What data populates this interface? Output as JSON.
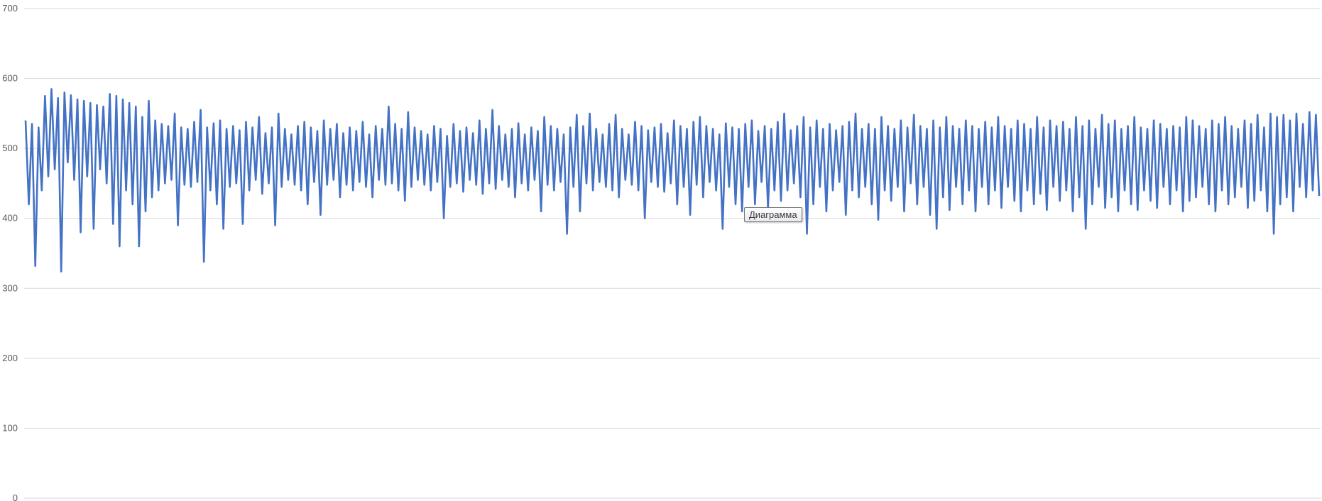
{
  "chart_data": {
    "type": "line",
    "title": "",
    "xlabel": "",
    "ylabel": "",
    "ylim": [
      0,
      700
    ],
    "yticks": [
      "0",
      "100",
      "200",
      "300",
      "400",
      "500",
      "600",
      "700"
    ],
    "grid": true,
    "legend": "none",
    "series_color": "#4472c4",
    "gridline_color": "#d9d9d9",
    "values": [
      540,
      420,
      535,
      332,
      530,
      440,
      575,
      460,
      585,
      470,
      572,
      324,
      580,
      480,
      576,
      455,
      570,
      380,
      568,
      460,
      565,
      385,
      562,
      470,
      560,
      450,
      578,
      392,
      575,
      360,
      570,
      440,
      565,
      420,
      560,
      360,
      545,
      410,
      568,
      430,
      540,
      440,
      535,
      450,
      532,
      455,
      550,
      390,
      530,
      448,
      528,
      445,
      538,
      452,
      555,
      338,
      530,
      440,
      536,
      420,
      540,
      385,
      528,
      445,
      532,
      450,
      526,
      392,
      538,
      440,
      530,
      455,
      545,
      435,
      522,
      450,
      530,
      390,
      550,
      445,
      528,
      455,
      520,
      448,
      532,
      440,
      538,
      420,
      530,
      452,
      525,
      405,
      540,
      448,
      528,
      455,
      535,
      430,
      522,
      448,
      530,
      440,
      525,
      452,
      538,
      445,
      520,
      430,
      532,
      455,
      528,
      448,
      560,
      450,
      535,
      440,
      528,
      425,
      552,
      445,
      530,
      455,
      525,
      448,
      520,
      440,
      532,
      452,
      528,
      400,
      518,
      445,
      535,
      450,
      525,
      438,
      530,
      455,
      522,
      448,
      540,
      435,
      528,
      450,
      555,
      442,
      532,
      455,
      520,
      445,
      528,
      430,
      536,
      450,
      520,
      440,
      530,
      455,
      525,
      410,
      545,
      448,
      532,
      440,
      528,
      452,
      520,
      378,
      530,
      445,
      548,
      410,
      532,
      450,
      550,
      440,
      528,
      452,
      520,
      445,
      535,
      440,
      548,
      430,
      528,
      455,
      520,
      448,
      538,
      440,
      532,
      400,
      526,
      452,
      530,
      445,
      535,
      438,
      522,
      450,
      540,
      420,
      532,
      445,
      528,
      405,
      538,
      448,
      545,
      430,
      532,
      452,
      528,
      440,
      520,
      385,
      536,
      445,
      530,
      420,
      528,
      410,
      535,
      445,
      540,
      420,
      525,
      452,
      532,
      415,
      528,
      440,
      538,
      425,
      550,
      440,
      526,
      450,
      532,
      430,
      545,
      378,
      530,
      420,
      540,
      445,
      528,
      410,
      535,
      440,
      526,
      452,
      532,
      405,
      538,
      440,
      550,
      430,
      528,
      445,
      535,
      420,
      528,
      398,
      545,
      440,
      532,
      425,
      528,
      445,
      540,
      410,
      530,
      450,
      548,
      420,
      532,
      445,
      528,
      405,
      540,
      385,
      530,
      430,
      545,
      412,
      532,
      445,
      528,
      420,
      540,
      440,
      532,
      410,
      528,
      445,
      538,
      420,
      530,
      440,
      545,
      415,
      532,
      445,
      528,
      425,
      540,
      410,
      535,
      440,
      528,
      420,
      545,
      435,
      530,
      412,
      540,
      445,
      532,
      425,
      538,
      440,
      528,
      410,
      545,
      430,
      532,
      385,
      540,
      420,
      528,
      445,
      548,
      415,
      535,
      430,
      540,
      410,
      528,
      440,
      532,
      420,
      545,
      412,
      530,
      440,
      528,
      425,
      540,
      415,
      535,
      445,
      528,
      420,
      532,
      440,
      530,
      410,
      545,
      425,
      540,
      430,
      532,
      445,
      528,
      420,
      540,
      410,
      535,
      440,
      545,
      420,
      532,
      430,
      528,
      445,
      540,
      415,
      535,
      425,
      548,
      440,
      530,
      410,
      550,
      378,
      545,
      420,
      548,
      430,
      540,
      410,
      550,
      445,
      535,
      430,
      552,
      440,
      548,
      432
    ]
  },
  "tooltip": {
    "text": "Диаграмма"
  }
}
